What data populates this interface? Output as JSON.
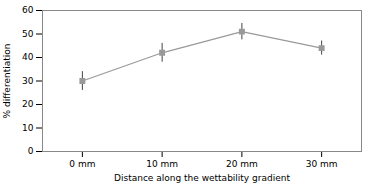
{
  "chart_data": {
    "type": "line",
    "xlabel": "Distance along the wettability gradient",
    "ylabel": "% differentiation",
    "x": [
      0,
      10,
      20,
      30
    ],
    "values": [
      30,
      42,
      51,
      44
    ],
    "yerr": [
      4.0,
      4.0,
      3.5,
      3.0
    ],
    "xlim": [
      -5,
      35
    ],
    "xticks": [
      {
        "value": 0,
        "label": "0 mm"
      },
      {
        "value": 10,
        "label": "10 mm"
      },
      {
        "value": 20,
        "label": "20 mm"
      },
      {
        "value": 30,
        "label": "30 mm"
      }
    ],
    "ylim": [
      0,
      60
    ],
    "yticks": [
      0,
      10,
      20,
      30,
      40,
      50,
      60
    ],
    "color": "#999999",
    "marker": "square",
    "grid": false
  }
}
